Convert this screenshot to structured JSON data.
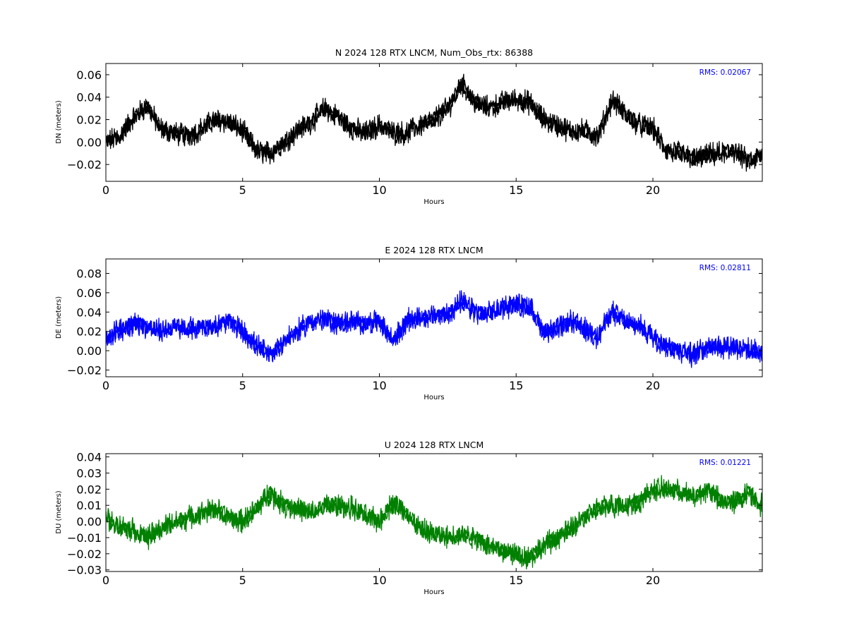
{
  "chart_data": [
    {
      "type": "line",
      "title": "N 2024 128 RTX  LNCM, Num_Obs_rtx: 86388",
      "xlabel": "Hours",
      "ylabel": "DN (meters)",
      "xlim": [
        0,
        24
      ],
      "ylim": [
        -0.035,
        0.07
      ],
      "xticks": [
        0,
        5,
        10,
        15,
        20
      ],
      "yticks": [
        -0.02,
        0.0,
        0.02,
        0.04,
        0.06
      ],
      "ytick_labels": [
        "−0.02",
        "0.00",
        "0.02",
        "0.04",
        "0.06"
      ],
      "annotation": "RMS:  0.02067",
      "annotation_color": "#0000ff",
      "grid": false,
      "series": [
        {
          "color": "#000000",
          "x": [
            0.0,
            0.5,
            1.0,
            1.5,
            2.0,
            2.5,
            3.0,
            3.5,
            4.0,
            4.5,
            5.0,
            5.5,
            6.0,
            6.5,
            7.0,
            7.5,
            8.0,
            8.5,
            9.0,
            9.5,
            10.0,
            10.5,
            11.0,
            11.5,
            12.0,
            12.5,
            13.0,
            13.5,
            14.0,
            14.5,
            15.0,
            15.5,
            16.0,
            16.5,
            17.0,
            17.5,
            18.0,
            18.5,
            19.0,
            19.5,
            20.0,
            20.5,
            21.0,
            21.5,
            22.0,
            22.5,
            23.0,
            23.5,
            24.0
          ],
          "values": [
            0.0,
            0.005,
            0.022,
            0.032,
            0.012,
            0.008,
            0.005,
            0.012,
            0.02,
            0.018,
            0.01,
            -0.008,
            -0.01,
            0.0,
            0.01,
            0.018,
            0.03,
            0.022,
            0.012,
            0.008,
            0.015,
            0.008,
            0.008,
            0.015,
            0.02,
            0.03,
            0.052,
            0.035,
            0.03,
            0.035,
            0.038,
            0.035,
            0.02,
            0.015,
            0.01,
            0.01,
            0.005,
            0.038,
            0.025,
            0.015,
            0.012,
            -0.008,
            -0.01,
            -0.015,
            -0.012,
            -0.01,
            -0.008,
            -0.018,
            -0.012
          ]
        }
      ]
    },
    {
      "type": "line",
      "title": "E 2024 128 RTX  LNCM",
      "xlabel": "Hours",
      "ylabel": "DE (meters)",
      "xlim": [
        0,
        24
      ],
      "ylim": [
        -0.027,
        0.095
      ],
      "xticks": [
        0,
        5,
        10,
        15,
        20
      ],
      "yticks": [
        -0.02,
        0.0,
        0.02,
        0.04,
        0.06,
        0.08
      ],
      "ytick_labels": [
        "−0.02",
        "0.00",
        "0.02",
        "0.04",
        "0.06",
        "0.08"
      ],
      "annotation": "RMS:  0.02811",
      "annotation_color": "#0000ff",
      "grid": false,
      "series": [
        {
          "color": "#0000ff",
          "x": [
            0.0,
            0.5,
            1.0,
            1.5,
            2.0,
            2.5,
            3.0,
            3.5,
            4.0,
            4.5,
            5.0,
            5.5,
            6.0,
            6.5,
            7.0,
            7.5,
            8.0,
            8.5,
            9.0,
            9.5,
            10.0,
            10.5,
            11.0,
            11.5,
            12.0,
            12.5,
            13.0,
            13.5,
            14.0,
            14.5,
            15.0,
            15.5,
            16.0,
            16.5,
            17.0,
            17.5,
            18.0,
            18.5,
            19.0,
            19.5,
            20.0,
            20.5,
            21.0,
            21.5,
            22.0,
            22.5,
            23.0,
            23.5,
            24.0
          ],
          "values": [
            0.012,
            0.022,
            0.028,
            0.025,
            0.02,
            0.025,
            0.022,
            0.025,
            0.025,
            0.03,
            0.02,
            0.005,
            -0.005,
            0.01,
            0.02,
            0.03,
            0.032,
            0.028,
            0.03,
            0.028,
            0.03,
            0.01,
            0.03,
            0.035,
            0.035,
            0.038,
            0.05,
            0.04,
            0.038,
            0.045,
            0.048,
            0.045,
            0.02,
            0.022,
            0.03,
            0.022,
            0.015,
            0.04,
            0.03,
            0.025,
            0.015,
            0.005,
            0.0,
            -0.005,
            0.005,
            0.005,
            0.005,
            0.0,
            -0.002
          ]
        }
      ]
    },
    {
      "type": "line",
      "title": "U 2024 128 RTX  LNCM",
      "xlabel": "Hours",
      "ylabel": "DU (meters)",
      "xlim": [
        0,
        24
      ],
      "ylim": [
        -0.031,
        0.042
      ],
      "xticks": [
        0,
        5,
        10,
        15,
        20
      ],
      "yticks": [
        -0.03,
        -0.02,
        -0.01,
        0.0,
        0.01,
        0.02,
        0.03,
        0.04
      ],
      "ytick_labels": [
        "−0.03",
        "−0.02",
        "−0.01",
        "0.00",
        "0.01",
        "0.02",
        "0.03",
        "0.04"
      ],
      "annotation": "RMS:  0.01221",
      "annotation_color": "#0000ff",
      "grid": false,
      "series": [
        {
          "color": "#008000",
          "x": [
            0.0,
            0.5,
            1.0,
            1.5,
            2.0,
            2.5,
            3.0,
            3.5,
            4.0,
            4.5,
            5.0,
            5.5,
            6.0,
            6.5,
            7.0,
            7.5,
            8.0,
            8.5,
            9.0,
            9.5,
            10.0,
            10.5,
            11.0,
            11.5,
            12.0,
            12.5,
            13.0,
            13.5,
            14.0,
            14.5,
            15.0,
            15.5,
            16.0,
            16.5,
            17.0,
            17.5,
            18.0,
            18.5,
            19.0,
            19.5,
            20.0,
            20.5,
            21.0,
            21.5,
            22.0,
            22.5,
            23.0,
            23.5,
            24.0
          ],
          "values": [
            0.002,
            -0.003,
            -0.005,
            -0.01,
            -0.005,
            0.0,
            0.002,
            0.005,
            0.008,
            0.002,
            0.0,
            0.008,
            0.018,
            0.01,
            0.008,
            0.005,
            0.01,
            0.01,
            0.008,
            0.003,
            0.0,
            0.012,
            0.005,
            -0.005,
            -0.008,
            -0.01,
            -0.008,
            -0.01,
            -0.015,
            -0.018,
            -0.02,
            -0.022,
            -0.015,
            -0.01,
            -0.005,
            0.002,
            0.008,
            0.01,
            0.01,
            0.012,
            0.02,
            0.02,
            0.018,
            0.015,
            0.02,
            0.012,
            0.012,
            0.018,
            0.01
          ]
        }
      ]
    }
  ]
}
